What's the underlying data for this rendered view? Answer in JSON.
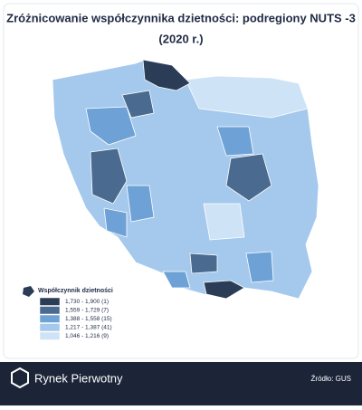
{
  "header": {
    "title_lines": [
      "Zróżnicowanie współczynnika dzietności: podregiony NUTS -3",
      "(2020 r.)"
    ]
  },
  "legend": {
    "title": "Współczynnik dzietności",
    "items": [
      {
        "label": "1,730 - 1,900 (1)",
        "color": "#2b3c57"
      },
      {
        "label": "1,559 - 1,729 (7)",
        "color": "#4a6a8f"
      },
      {
        "label": "1,388 - 1,558 (15)",
        "color": "#6ea2d6"
      },
      {
        "label": "1,217 - 1,387 (41)",
        "color": "#a4c9ec"
      },
      {
        "label": "1,046 - 1,216 (9)",
        "color": "#cfe3f6"
      }
    ]
  },
  "footer": {
    "brand": "Rynek Pierwotny",
    "source": "Źródło: GUS"
  }
}
